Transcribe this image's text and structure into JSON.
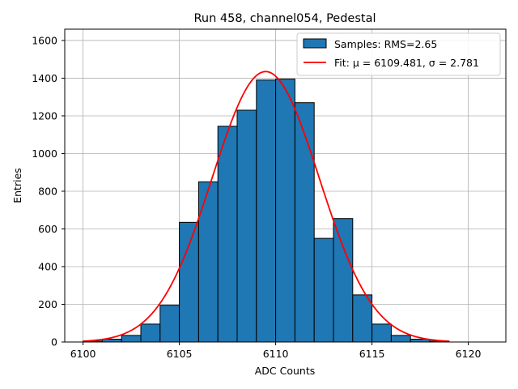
{
  "chart_data": {
    "type": "bar",
    "title": "Run 458, channel054, Pedestal",
    "xlabel": "ADC Counts",
    "ylabel": "Entries",
    "xlim": [
      6099.05,
      6121.95
    ],
    "ylim": [
      0,
      1660
    ],
    "xticks": [
      6100,
      6105,
      6110,
      6115,
      6120
    ],
    "yticks": [
      0,
      200,
      400,
      600,
      800,
      1000,
      1200,
      1400,
      1600
    ],
    "grid": true,
    "legend_placement": "top-right",
    "legend": [
      "Samples: RMS=2.65",
      "Fit: μ = 6109.481, σ = 2.781"
    ],
    "bin_width": 1,
    "bins": [
      6100,
      6101,
      6102,
      6103,
      6104,
      6105,
      6106,
      6107,
      6108,
      6109,
      6110,
      6111,
      6112,
      6113,
      6114,
      6115,
      6116,
      6117,
      6118
    ],
    "values": [
      5,
      15,
      35,
      95,
      195,
      635,
      850,
      1145,
      1230,
      1390,
      1395,
      1270,
      550,
      655,
      250,
      95,
      35,
      15,
      5
    ],
    "bar_color": "#1f77b4",
    "fit": {
      "mu": 6109.481,
      "sigma": 2.781,
      "amplitude": 1435,
      "x_range": [
        6100,
        6119
      ],
      "color": "#ff0000"
    }
  }
}
